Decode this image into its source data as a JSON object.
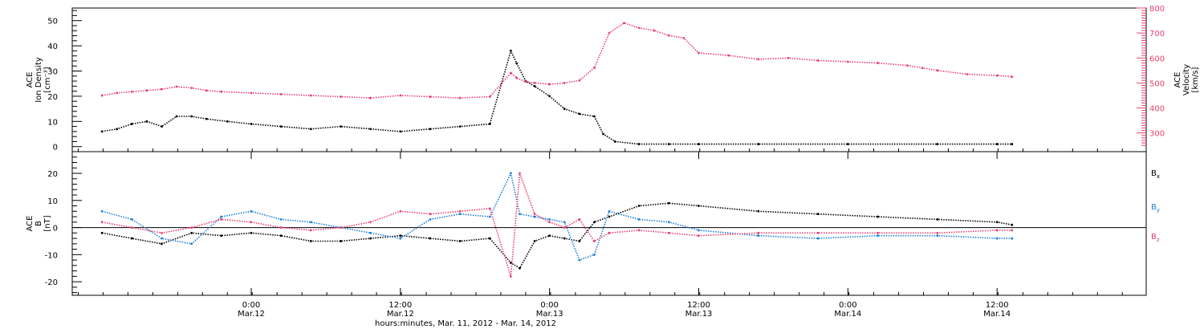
{
  "chart_data": [
    {
      "type": "scatter",
      "panel": "top",
      "ylabel_lines": [
        "ACE",
        "Ion Density",
        "[cm⁻³]"
      ],
      "y2label_lines": [
        "ACE",
        "Velocity",
        "[km/s]"
      ],
      "ylim": [
        -2,
        55
      ],
      "yticks": [
        0,
        10,
        20,
        30,
        40,
        50
      ],
      "y2lim": [
        225,
        800
      ],
      "y2ticks": [
        300,
        400,
        500,
        600,
        700,
        800
      ],
      "y2_color": "#e8416e",
      "series": [
        {
          "axis": "left",
          "color": "#000000",
          "x": [
            0,
            0.05,
            0.1,
            0.15,
            0.2,
            0.25,
            0.3,
            0.35,
            0.42,
            0.5,
            0.6,
            0.7,
            0.8,
            0.9,
            1.0,
            1.1,
            1.2,
            1.3,
            1.37,
            1.39,
            1.42,
            1.45,
            1.5,
            1.55,
            1.6,
            1.65,
            1.68,
            1.72,
            1.8,
            1.9,
            2.0,
            2.2,
            2.5,
            2.8,
            3.0,
            3.05
          ],
          "y": [
            6,
            7,
            9,
            10,
            8,
            12,
            12,
            11,
            10,
            9,
            8,
            7,
            8,
            7,
            6,
            7,
            8,
            9,
            38,
            33,
            26,
            24,
            20,
            15,
            13,
            12,
            5,
            2,
            1,
            1,
            1,
            1,
            1,
            1,
            1,
            1
          ]
        },
        {
          "axis": "right",
          "color": "#e8416e",
          "x": [
            0,
            0.05,
            0.1,
            0.15,
            0.2,
            0.25,
            0.3,
            0.35,
            0.4,
            0.5,
            0.6,
            0.7,
            0.8,
            0.9,
            1.0,
            1.1,
            1.2,
            1.3,
            1.37,
            1.39,
            1.42,
            1.45,
            1.5,
            1.55,
            1.6,
            1.65,
            1.7,
            1.75,
            1.8,
            1.85,
            1.9,
            1.95,
            2.0,
            2.1,
            2.2,
            2.3,
            2.4,
            2.5,
            2.6,
            2.7,
            2.75,
            2.8,
            2.9,
            3.0,
            3.05
          ],
          "y": [
            450,
            460,
            465,
            470,
            475,
            485,
            480,
            470,
            465,
            460,
            455,
            450,
            445,
            440,
            450,
            445,
            440,
            445,
            540,
            520,
            505,
            500,
            495,
            500,
            510,
            560,
            700,
            740,
            720,
            710,
            690,
            680,
            620,
            610,
            595,
            600,
            590,
            585,
            580,
            570,
            560,
            550,
            535,
            530,
            525
          ]
        }
      ],
      "xlim": [
        -0.1,
        3.5
      ]
    },
    {
      "type": "scatter",
      "panel": "bottom",
      "ylabel_lines": [
        "ACE",
        "B",
        "[nT]"
      ],
      "ylim": [
        -25,
        28
      ],
      "yticks": [
        -20,
        -10,
        0,
        10,
        20
      ],
      "series": [
        {
          "name": "Bx",
          "color": "#000000",
          "x": [
            0,
            0.1,
            0.2,
            0.3,
            0.4,
            0.5,
            0.6,
            0.7,
            0.8,
            0.9,
            1.0,
            1.1,
            1.2,
            1.3,
            1.37,
            1.4,
            1.45,
            1.5,
            1.55,
            1.6,
            1.65,
            1.7,
            1.8,
            1.9,
            2.0,
            2.2,
            2.4,
            2.6,
            2.8,
            3.0,
            3.05
          ],
          "y": [
            -2,
            -4,
            -6,
            -2,
            -3,
            -2,
            -3,
            -5,
            -5,
            -4,
            -3,
            -4,
            -5,
            -4,
            -13,
            -15,
            -5,
            -3,
            -4,
            -5,
            2,
            4,
            8,
            9,
            8,
            6,
            5,
            4,
            3,
            2,
            1
          ]
        },
        {
          "name": "By",
          "color": "#1e7fd8",
          "x": [
            0,
            0.1,
            0.2,
            0.3,
            0.4,
            0.5,
            0.6,
            0.7,
            0.8,
            0.9,
            1.0,
            1.1,
            1.2,
            1.3,
            1.37,
            1.4,
            1.45,
            1.5,
            1.55,
            1.6,
            1.65,
            1.7,
            1.8,
            1.9,
            2.0,
            2.2,
            2.4,
            2.6,
            2.8,
            3.0,
            3.05
          ],
          "y": [
            6,
            3,
            -4,
            -6,
            4,
            6,
            3,
            2,
            0,
            -2,
            -4,
            3,
            5,
            4,
            20,
            5,
            4,
            3,
            2,
            -12,
            -10,
            6,
            3,
            2,
            -1,
            -3,
            -4,
            -3,
            -3,
            -4,
            -4
          ]
        },
        {
          "name": "Bz",
          "color": "#e8416e",
          "x": [
            0,
            0.1,
            0.2,
            0.3,
            0.4,
            0.5,
            0.6,
            0.7,
            0.8,
            0.9,
            1.0,
            1.1,
            1.2,
            1.3,
            1.37,
            1.4,
            1.45,
            1.5,
            1.55,
            1.6,
            1.65,
            1.7,
            1.8,
            1.9,
            2.0,
            2.2,
            2.4,
            2.6,
            2.8,
            3.0,
            3.05
          ],
          "y": [
            2,
            0,
            -2,
            0,
            3,
            2,
            0,
            -1,
            0,
            2,
            6,
            5,
            6,
            7,
            -18,
            20,
            5,
            2,
            0,
            3,
            -5,
            -2,
            -1,
            -2,
            -3,
            -2,
            -2,
            -2,
            -2,
            -1,
            -1
          ]
        }
      ],
      "legend": [
        {
          "label": "B",
          "sub": "x",
          "color": "#000000"
        },
        {
          "label": "B",
          "sub": "y",
          "color": "#1e7fd8"
        },
        {
          "label": "B",
          "sub": "z",
          "color": "#e8416e"
        }
      ],
      "xlim": [
        -0.1,
        3.5
      ]
    }
  ],
  "x_axis": {
    "ticks": [
      {
        "x": 0.5,
        "time": "0:00",
        "date": "Mar.12"
      },
      {
        "x": 1.0,
        "time": "12:00",
        "date": "Mar.12"
      },
      {
        "x": 1.5,
        "time": "0:00",
        "date": "Mar.13"
      },
      {
        "x": 2.0,
        "time": "12:00",
        "date": "Mar.13"
      },
      {
        "x": 2.5,
        "time": "0:00",
        "date": "Mar.14"
      },
      {
        "x": 3.0,
        "time": "12:00",
        "date": "Mar.14"
      }
    ],
    "label": "hours:minutes, Mar. 11, 2012 - Mar. 14, 2012"
  }
}
